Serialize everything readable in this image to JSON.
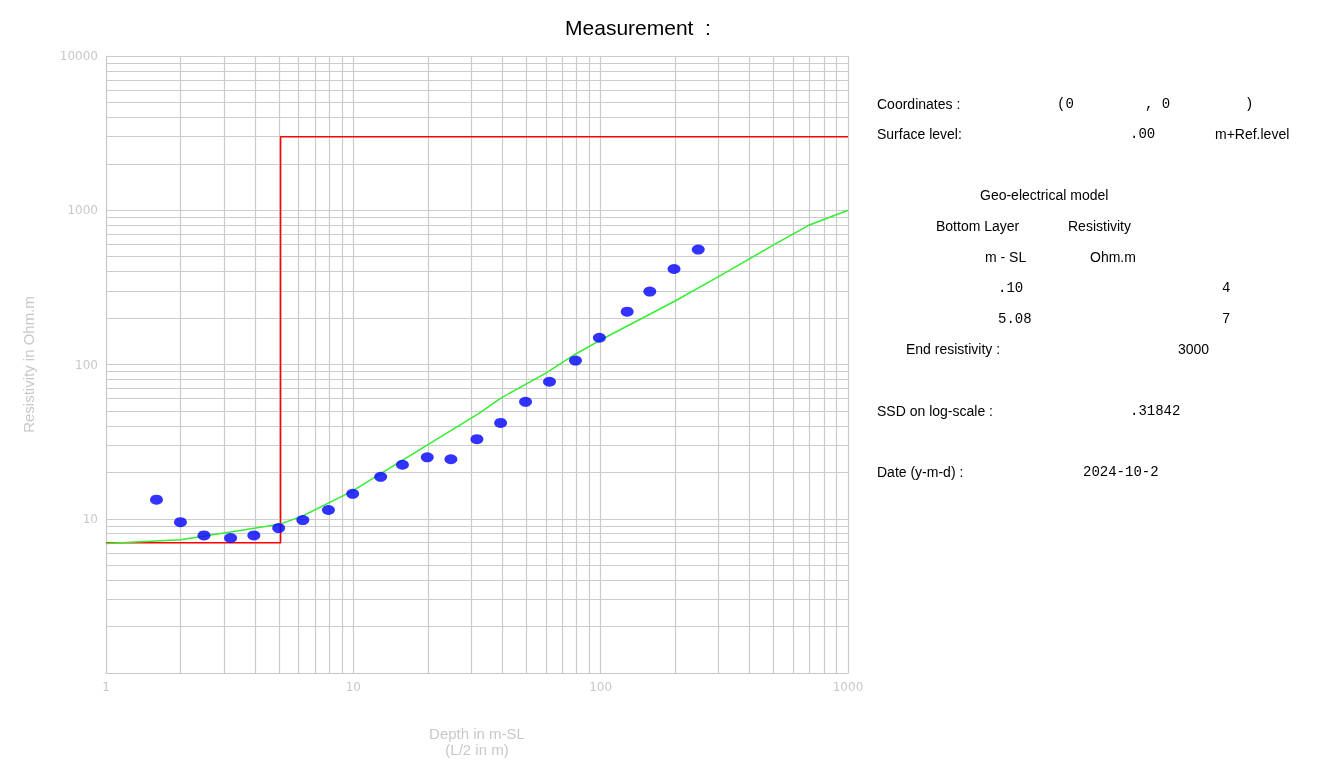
{
  "chart_data": {
    "type": "scatter",
    "title": "Measurement  :",
    "xlabel": "Depth in m-SL\n(L/2 in m)",
    "ylabel": "Resistivity in Ohm.m",
    "log": "xy",
    "xlim": [
      1,
      1000
    ],
    "xticks": [
      1,
      10,
      100,
      1000
    ],
    "ylim": [
      1,
      10000
    ],
    "yticks": [
      10,
      100,
      1000,
      10000
    ],
    "grid": true,
    "series": [
      {
        "type": "step",
        "color": "#ff0000",
        "marker": "none",
        "x": [
          1,
          5.08,
          1000
        ],
        "values": [
          7,
          3000,
          3000
        ]
      },
      {
        "type": "line",
        "color": "#33ee33",
        "marker": "none",
        "x": [
          1,
          2,
          5.03,
          6.22,
          9.9,
          14.9,
          32.2,
          39.5,
          60,
          79.3,
          99,
          199,
          296,
          494,
          690,
          1000
        ],
        "values": [
          6.9,
          7.3,
          9.2,
          10.4,
          15.1,
          22.6,
          48.2,
          60.6,
          88,
          117,
          143,
          257,
          367,
          589,
          796,
          1000
        ]
      },
      {
        "color": "#0000ff",
        "marker": "circle",
        "x": [
          1.6,
          2.0,
          2.49,
          3.19,
          3.96,
          4.99,
          6.25,
          7.93,
          9.94,
          12.9,
          15.8,
          19.9,
          24.8,
          31.6,
          39.4,
          49.7,
          62.1,
          79.1,
          98.8,
          128,
          158,
          198,
          248
        ],
        "values": [
          13.3,
          9.5,
          7.8,
          7.5,
          7.8,
          8.7,
          9.8,
          11.4,
          14.5,
          18.7,
          22.4,
          25,
          24.3,
          32.8,
          41.8,
          57.3,
          77.3,
          106,
          149,
          220,
          297,
          416,
          556
        ]
      }
    ],
    "annotations": [
      "Coordinates :",
      "(0",
      ", 0",
      ")",
      "Surface level:",
      ".00",
      "m+Ref.level",
      "Geo-electrical model",
      "Bottom Layer",
      "Resistivity",
      "m - SL",
      "Ohm.m",
      ".10",
      "4",
      "5.08",
      "7",
      "End resistivity :",
      "3000",
      "SSD on log-scale :",
      ".31842",
      "Date (y-m-d) :",
      "2024-10-2"
    ]
  }
}
